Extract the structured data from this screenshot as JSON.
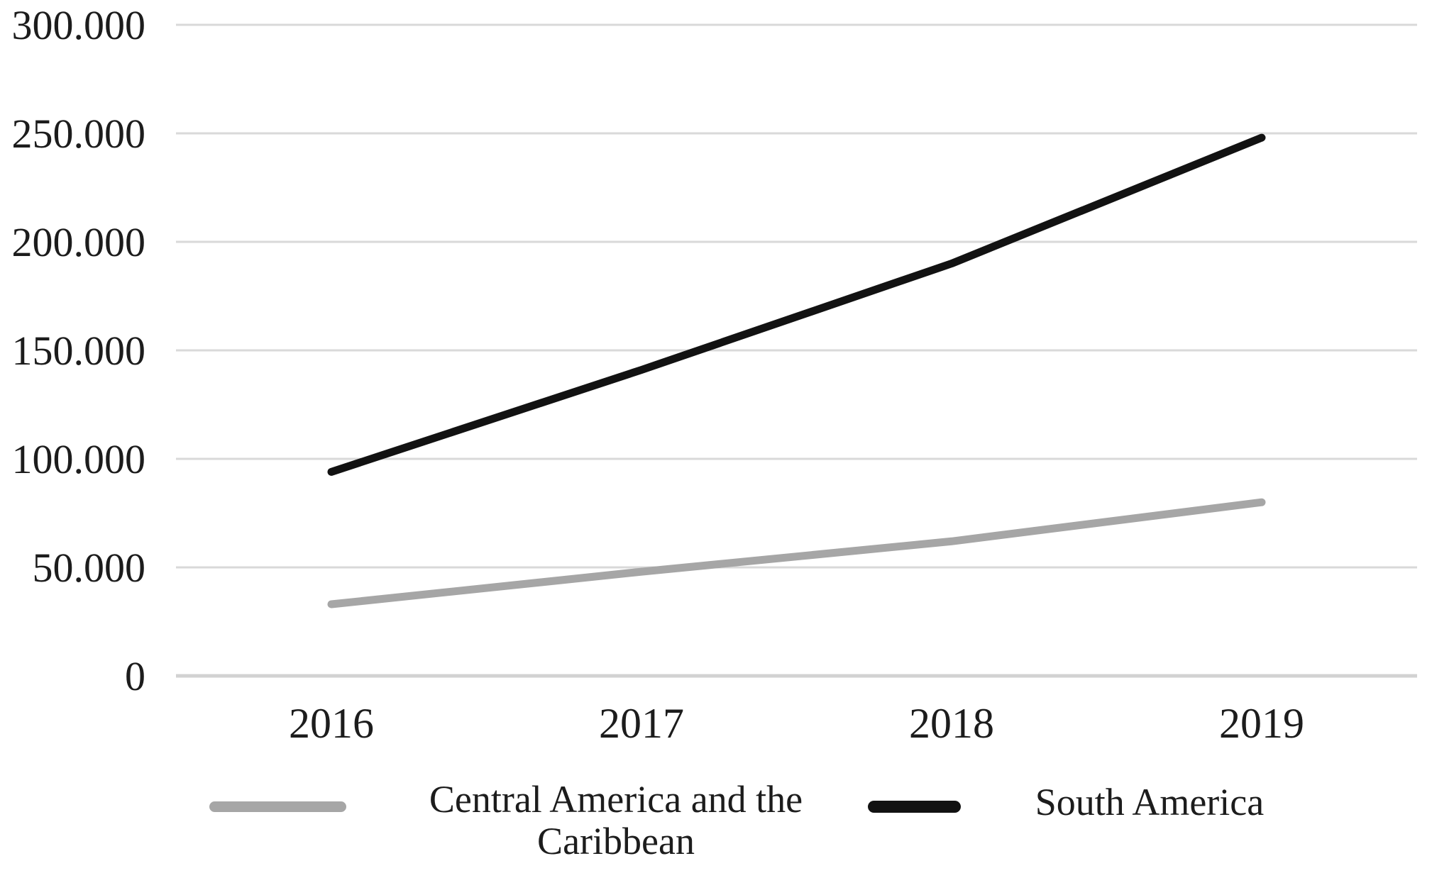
{
  "chart_data": {
    "type": "line",
    "title": "",
    "xlabel": "",
    "ylabel": "",
    "categories": [
      "2016",
      "2017",
      "2018",
      "2019"
    ],
    "series": [
      {
        "name": "Central America and the Caribbean",
        "color": "#a6a6a6",
        "values": [
          33000,
          48000,
          62000,
          80000
        ]
      },
      {
        "name": "South America",
        "color": "#121212",
        "values": [
          94000,
          141000,
          190000,
          248000
        ]
      }
    ],
    "ylim": [
      0,
      300000
    ],
    "yticks": [
      {
        "value": 0,
        "label": "0"
      },
      {
        "value": 50000,
        "label": "50.000"
      },
      {
        "value": 100000,
        "label": "100.000"
      },
      {
        "value": 150000,
        "label": "150.000"
      },
      {
        "value": 200000,
        "label": "200.000"
      },
      {
        "value": 250000,
        "label": "250.000"
      },
      {
        "value": 300000,
        "label": "300.000"
      }
    ],
    "grid": true,
    "gridline_color": "#d9d9d9",
    "axis_line_color": "#d2d2d2",
    "legend_position": "bottom",
    "line_width": 11
  }
}
